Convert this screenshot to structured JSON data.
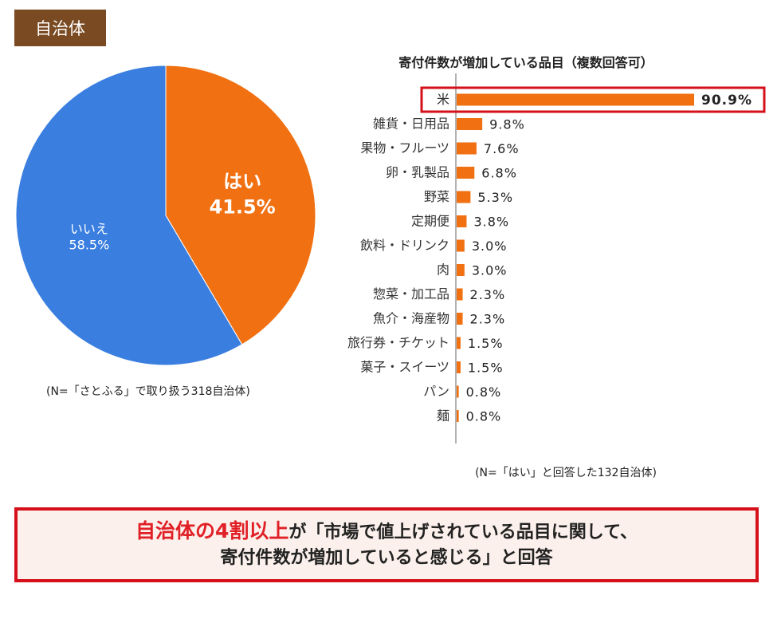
{
  "header": {
    "tag": "自治体"
  },
  "chart_data": [
    {
      "type": "pie",
      "slices": [
        {
          "label": "はい",
          "value": 41.5,
          "value_label": "41.5%",
          "color": "#f07012"
        },
        {
          "label": "いいえ",
          "value": 58.5,
          "value_label": "58.5%",
          "color": "#3a7fe0"
        }
      ],
      "note": "(N=「さとふる」で取り扱う318自治体)"
    },
    {
      "type": "bar",
      "orientation": "horizontal",
      "title": "寄付件数が増加している品目（複数回答可）",
      "categories": [
        "米",
        "雑貨・日用品",
        "果物・フルーツ",
        "卵・乳製品",
        "野菜",
        "定期便",
        "飲料・ドリンク",
        "肉",
        "惣菜・加工品",
        "魚介・海産物",
        "旅行券・チケット",
        "菓子・スイーツ",
        "パン",
        "麺"
      ],
      "values": [
        90.9,
        9.8,
        7.6,
        6.8,
        5.3,
        3.8,
        3.0,
        3.0,
        2.3,
        2.3,
        1.5,
        1.5,
        0.8,
        0.8
      ],
      "value_labels": [
        "90.9%",
        "9.8%",
        "7.6%",
        "6.8%",
        "5.3%",
        "3.8%",
        "3.0%",
        "3.0%",
        "2.3%",
        "2.3%",
        "1.5%",
        "1.5%",
        "0.8%",
        "0.8%"
      ],
      "highlighted_category": "米",
      "bar_color": "#f07012",
      "highlight_color": "#d5101a",
      "note": "(N=「はい」と回答した132自治体)"
    }
  ],
  "conclusion": {
    "highlight": "自治体の4割以上",
    "line1_rest": "が「市場で値上げされている品目に関して、",
    "line2": "寄付件数が増加していると感じる」と回答"
  }
}
